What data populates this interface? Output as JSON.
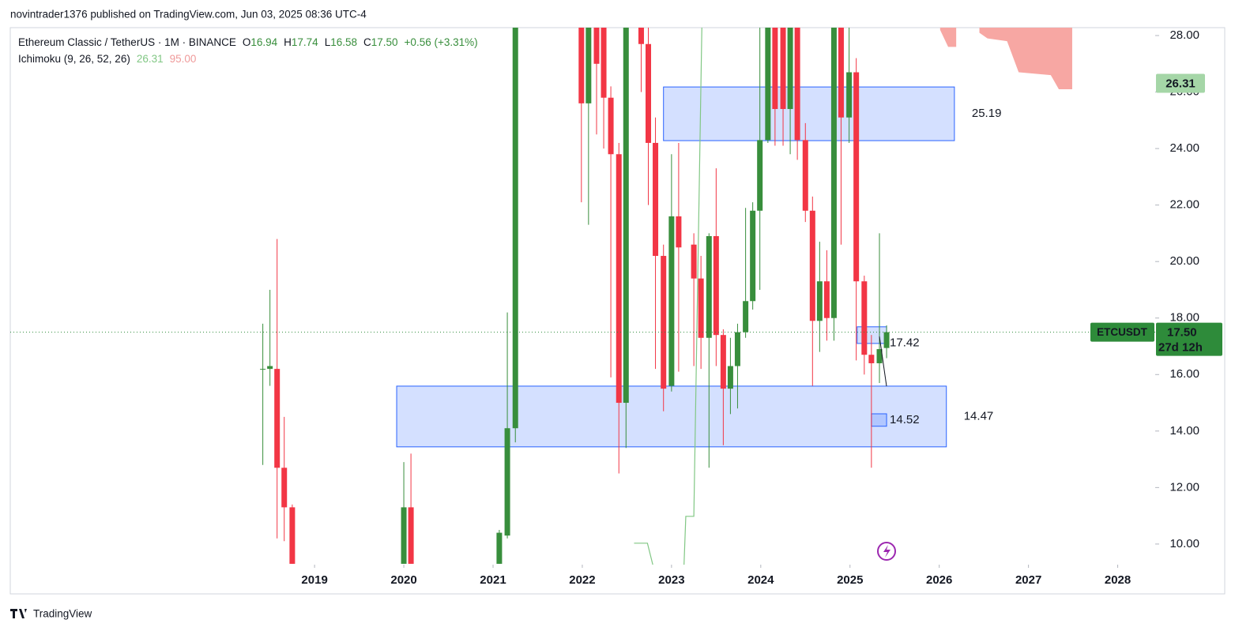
{
  "header": {
    "published": "novintrader1376 published on TradingView.com, Jun 03, 2025 08:36 UTC-4"
  },
  "footer": {
    "brand": "TradingView"
  },
  "chart_data": {
    "type": "candlestick",
    "legend": {
      "symbol": "Ethereum Classic / TetherUS · 1M · BINANCE",
      "ohlc": [
        {
          "key": "O",
          "value": "16.94"
        },
        {
          "key": "H",
          "value": "17.74"
        },
        {
          "key": "L",
          "value": "16.58"
        },
        {
          "key": "C",
          "value": "17.50"
        }
      ],
      "change": "+0.56 (+3.31%)"
    },
    "indicator": {
      "name": "Ichimoku (9, 26, 52, 26)",
      "values": [
        26.31,
        95
      ],
      "value_labels": [
        "26.31",
        "95.00"
      ],
      "colors": [
        "#81c784",
        "#ef9a9a"
      ]
    },
    "up_color": "#388e3c",
    "down_color": "#f23645",
    "x": [
      2018.42,
      2018.5,
      2018.58,
      2018.66,
      2018.75,
      2020.0,
      2020.08,
      2021.07,
      2021.16,
      2021.25,
      2021.99,
      2022.07,
      2022.16,
      2022.24,
      2022.32,
      2022.41,
      2022.49,
      2022.66,
      2022.74,
      2022.82,
      2022.91,
      2023.0,
      2023.08,
      2023.25,
      2023.33,
      2023.42,
      2023.5,
      2023.58,
      2023.66,
      2023.74,
      2023.83,
      2023.91,
      2023.99,
      2024.08,
      2024.16,
      2024.25,
      2024.33,
      2024.41,
      2024.5,
      2024.58,
      2024.66,
      2024.74,
      2024.82,
      2024.9,
      2024.99,
      2025.07,
      2025.16,
      2025.24,
      2025.33,
      2025.41
    ],
    "open": [
      16.2,
      16.2,
      16.2,
      12.7,
      11.3,
      9.3,
      11.3,
      9.3,
      10.3,
      14.1,
      28.3,
      25.6,
      28.3,
      28.3,
      25.8,
      23.8,
      15.0,
      28.3,
      27.7,
      24.2,
      20.2,
      15.6,
      21.6,
      20.6,
      19.4,
      17.3,
      20.9,
      17.4,
      15.5,
      16.3,
      17.5,
      18.6,
      21.8,
      24.3,
      28.3,
      28.3,
      25.4,
      28.3,
      24.3,
      21.8,
      17.9,
      19.3,
      18.0,
      28.3,
      25.1,
      26.7,
      19.3,
      16.7,
      16.4,
      16.94
    ],
    "high": [
      17.8,
      19.0,
      20.8,
      14.5,
      11.4,
      12.9,
      13.2,
      10.5,
      18.2,
      28.3,
      28.3,
      28.3,
      28.3,
      28.3,
      26.2,
      24.2,
      28.3,
      28.3,
      28.3,
      25.1,
      20.6,
      23.8,
      24.2,
      21.0,
      20.2,
      21.0,
      23.3,
      17.6,
      17.3,
      17.8,
      21.9,
      22.1,
      28.3,
      28.3,
      28.3,
      28.3,
      28.3,
      28.3,
      24.9,
      22.3,
      20.7,
      20.4,
      28.3,
      28.3,
      28.3,
      27.2,
      19.5,
      17.4,
      21.0,
      17.74
    ],
    "low": [
      12.8,
      15.6,
      10.2,
      10.1,
      9.3,
      9.3,
      9.3,
      9.3,
      10.2,
      13.6,
      22.1,
      21.3,
      24.5,
      24.0,
      15.9,
      12.5,
      13.4,
      26.0,
      22.0,
      16.2,
      14.7,
      15.4,
      16.1,
      16.3,
      16.2,
      12.7,
      16.3,
      13.5,
      14.6,
      14.8,
      17.3,
      18.3,
      19.0,
      24.2,
      24.1,
      24.1,
      23.8,
      23.6,
      21.4,
      15.6,
      16.8,
      17.2,
      17.2,
      20.6,
      24.2,
      16.5,
      16.0,
      12.7,
      15.7,
      16.58
    ],
    "close": [
      16.2,
      16.3,
      12.7,
      11.3,
      9.3,
      11.3,
      9.3,
      10.4,
      14.1,
      28.3,
      25.6,
      28.3,
      27.0,
      25.8,
      23.8,
      15.0,
      28.3,
      27.7,
      24.2,
      20.2,
      15.5,
      21.6,
      20.5,
      19.4,
      17.3,
      20.9,
      17.4,
      15.5,
      16.3,
      17.5,
      18.6,
      21.8,
      24.3,
      28.3,
      25.4,
      25.4,
      28.3,
      24.3,
      21.8,
      17.9,
      19.3,
      18.0,
      28.3,
      25.1,
      26.7,
      19.3,
      16.7,
      16.4,
      16.9,
      17.5
    ],
    "lagging_span": {
      "x": [
        2022.58,
        2022.73,
        2022.79,
        2022.95,
        2023.14,
        2023.16,
        2023.25,
        2023.34
      ],
      "values": [
        10.03,
        10.03,
        9.27,
        null,
        9.27,
        10.98,
        10.98,
        28.3
      ],
      "color": "#81c784"
    },
    "cloud": {
      "x": [
        2026.01,
        2026.1,
        2026.19,
        2026.3,
        2026.45,
        2026.54,
        2026.76,
        2026.89,
        2027.25,
        2027.34,
        2027.49
      ],
      "lower": [
        28.2,
        27.6,
        27.6,
        null,
        28.1,
        27.9,
        27.8,
        26.7,
        26.6,
        26.1,
        26.1
      ],
      "color": "#f7a7a3"
    },
    "zones": [
      {
        "x": [
          2022.91,
          2026.17
        ],
        "top": 26.18,
        "bottom": 24.28,
        "label": "25.19"
      },
      {
        "x": [
          2019.92,
          2026.08
        ],
        "top": 15.59,
        "bottom": 13.44,
        "label": "14.47"
      },
      {
        "x": [
          2025.08,
          2025.41
        ],
        "top": 17.69,
        "bottom": 17.1,
        "label": "17.42"
      },
      {
        "x": [
          2025.24,
          2025.41
        ],
        "top": 14.61,
        "bottom": 14.17,
        "label": "14.52"
      }
    ],
    "last_price": {
      "symbol": "ETCUSDT",
      "value": 17.5,
      "label": "17.50",
      "countdown": "27d 12h",
      "color": "#2e8b3a"
    },
    "xlim": [
      2015.59,
      2028.42
    ],
    "ylim": [
      9.27,
      28.28
    ],
    "xticks": [
      2019,
      2020,
      2021,
      2022,
      2023,
      2024,
      2025,
      2026,
      2027,
      2028
    ],
    "yticks": [
      {
        "value": 10,
        "label": "10.00"
      },
      {
        "value": 12,
        "label": "12.00"
      },
      {
        "value": 14,
        "label": "14.00"
      },
      {
        "value": 16,
        "label": "16.00"
      },
      {
        "value": 18,
        "label": "18.00"
      },
      {
        "value": 20,
        "label": "20.00"
      },
      {
        "value": 22,
        "label": "22.00"
      },
      {
        "value": 24,
        "label": "24.00"
      },
      {
        "value": 26,
        "label": "26.00"
      },
      {
        "value": 28,
        "label": "28.00"
      }
    ]
  }
}
